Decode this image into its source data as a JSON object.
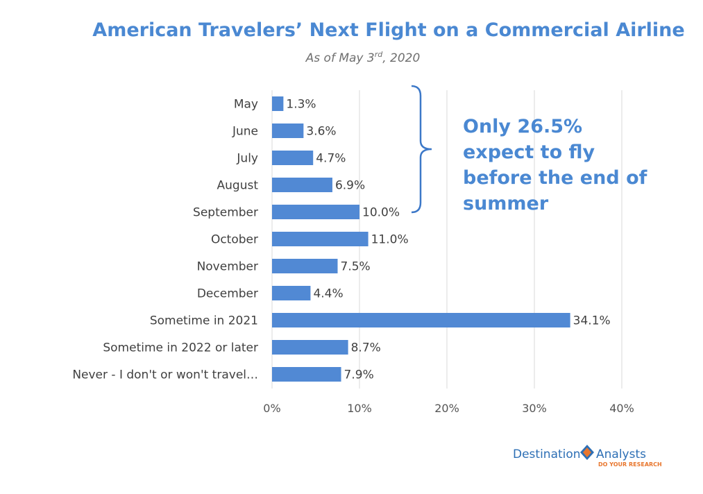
{
  "header": {
    "title": "American Travelers’ Next Flight on a Commercial Airline",
    "subtitle_main": "As of May 3",
    "subtitle_sup": "rd",
    "subtitle_tail": ", 2020"
  },
  "callout": {
    "lines": [
      "Only 26.5%",
      "expect to fly",
      "before the end of",
      "summer"
    ],
    "color": "#4a88d2"
  },
  "logo": {
    "word1": "Destination",
    "word2": "Analysts",
    "tagline": "DO YOUR RESEARCH",
    "colors": {
      "blue": "#2d6fb5",
      "orange": "#e8762d"
    }
  },
  "chart_data": {
    "type": "bar",
    "orientation": "horizontal",
    "categories": [
      "May",
      "June",
      "July",
      "August",
      "September",
      "October",
      "November",
      "December",
      "Sometime in 2021",
      "Sometime in 2022 or later",
      "Never - I don't or won't travel…"
    ],
    "values": [
      1.3,
      3.6,
      4.7,
      6.9,
      10.0,
      11.0,
      7.5,
      4.4,
      34.1,
      8.7,
      7.9
    ],
    "data_labels": [
      "1.3%",
      "3.6%",
      "4.7%",
      "6.9%",
      "10.0%",
      "11.0%",
      "7.5%",
      "4.4%",
      "34.1%",
      "8.7%",
      "7.9%"
    ],
    "xlim": [
      0,
      40
    ],
    "xticks": [
      0,
      10,
      20,
      30,
      40
    ],
    "xtick_labels": [
      "0%",
      "10%",
      "20%",
      "30%",
      "40%"
    ],
    "grid": true,
    "bar_color": "#5189d4"
  }
}
